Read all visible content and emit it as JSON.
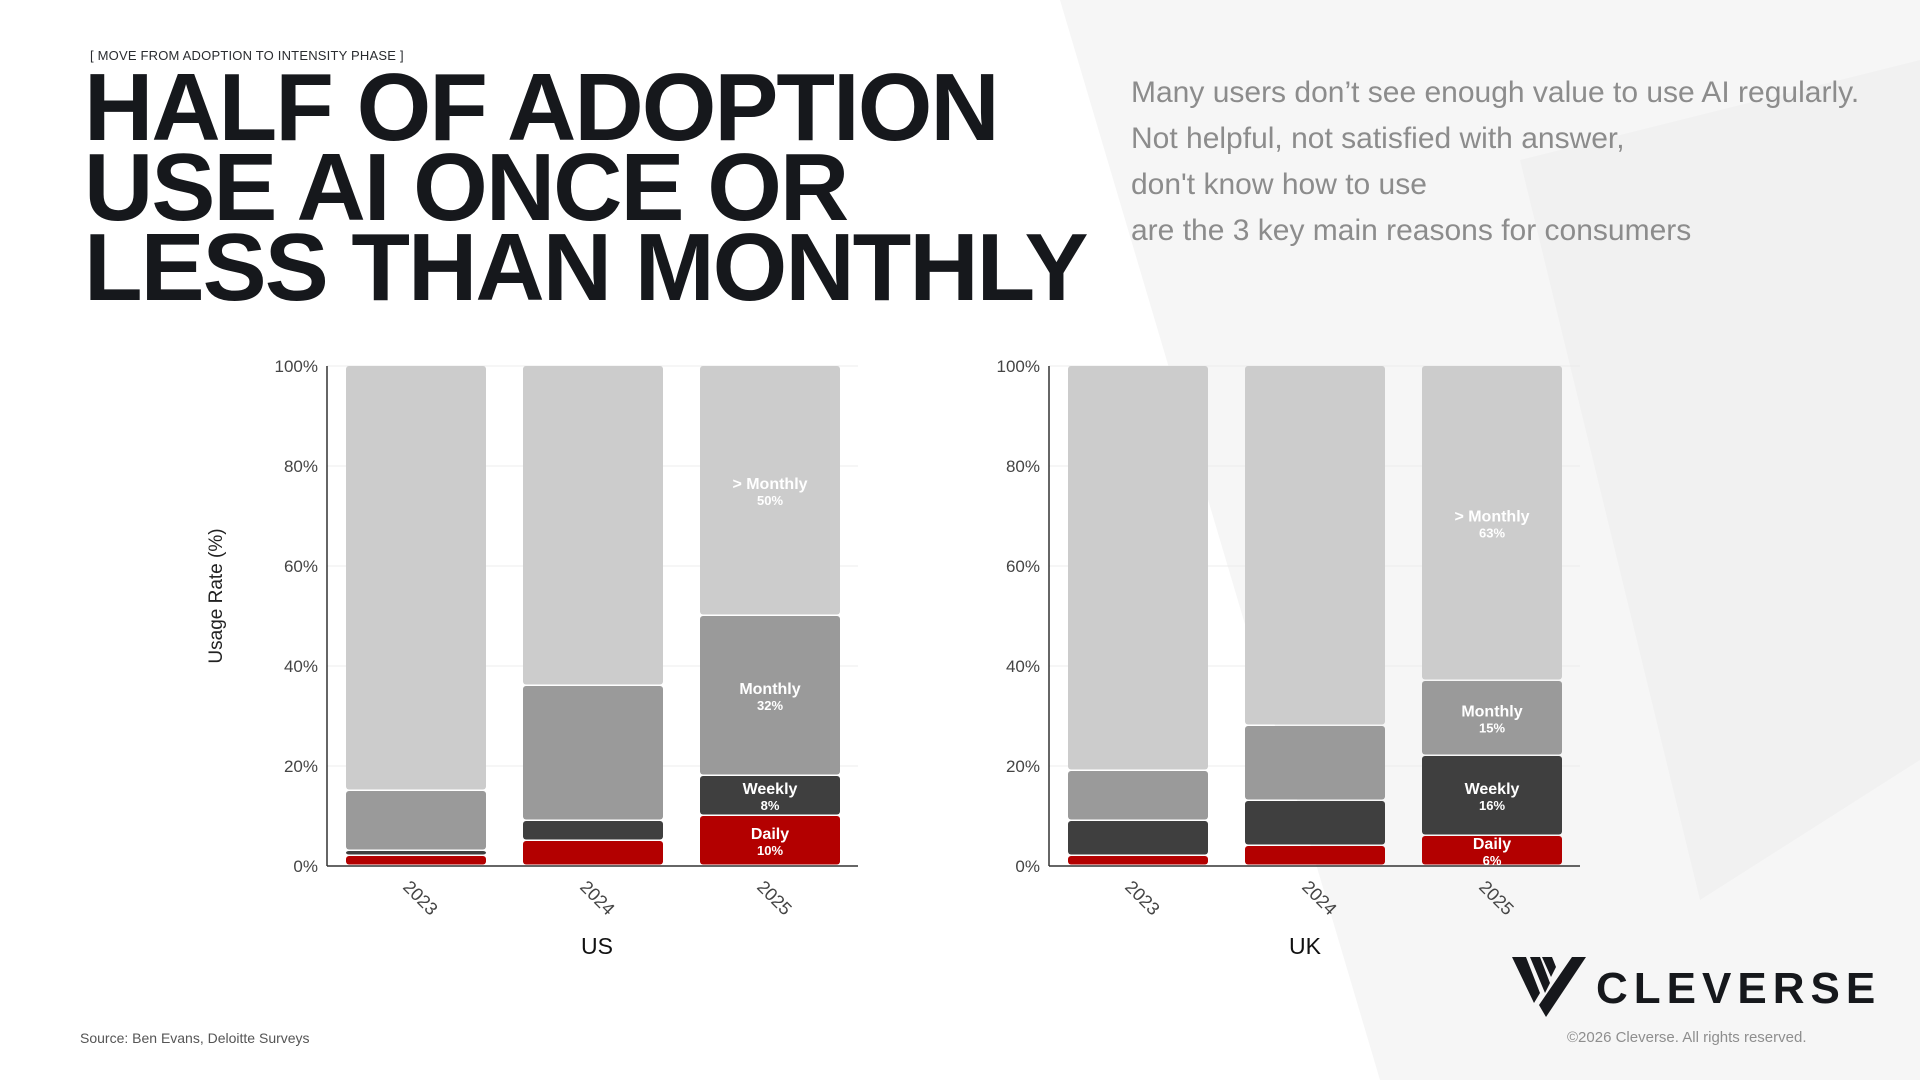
{
  "header": {
    "kicker": "[ MOVE FROM ADOPTION TO INTENSITY PHASE ]",
    "title_lines": [
      "HALF OF ADOPTION",
      "USE AI ONCE OR",
      "LESS THAN MONTHLY"
    ]
  },
  "subtext": [
    "Many users don’t see enough value to use AI regularly.",
    "Not helpful, not satisfied with answer,",
    "don't know how to use",
    "are the 3 key main reasons for consumers"
  ],
  "footer": {
    "source": "Source: Ben Evans, Deloitte Surveys",
    "brand_name": "CLEVERSE",
    "copyright": "©2026 Cleverse. All rights reserved.",
    "logo_icon": "cleverse-logo-icon"
  },
  "colors": {
    "daily": "#b30000",
    "weekly": "#3f3f3f",
    "monthly": "#9a9a9a",
    "more_than_monthly": "#cccccc",
    "grid": "#ececec",
    "axis": "#333333"
  },
  "chart_data": [
    {
      "type": "bar",
      "stacked": true,
      "xlabel": "US",
      "ylabel": "Usage Rate (%)",
      "ylim": [
        0,
        100
      ],
      "yticks": [
        "0%",
        "20%",
        "40%",
        "60%",
        "80%",
        "100%"
      ],
      "categories": [
        "2023",
        "2024",
        "2025"
      ],
      "grid": true,
      "series": [
        {
          "name": "Daily",
          "key": "daily",
          "values": [
            2,
            5,
            10
          ],
          "labels": [
            "",
            "",
            "10%"
          ]
        },
        {
          "name": "Weekly",
          "key": "weekly",
          "values": [
            1,
            4,
            8
          ],
          "labels": [
            "",
            "",
            "8%"
          ]
        },
        {
          "name": "Monthly",
          "key": "monthly",
          "values": [
            12,
            27,
            32
          ],
          "labels": [
            "",
            "",
            "32%"
          ]
        },
        {
          "name": "> Monthly",
          "key": "more_than_monthly",
          "values": [
            85,
            64,
            50
          ],
          "labels": [
            "",
            "",
            "50%"
          ]
        }
      ]
    },
    {
      "type": "bar",
      "stacked": true,
      "xlabel": "UK",
      "ylabel": "",
      "ylim": [
        0,
        100
      ],
      "yticks": [
        "0%",
        "20%",
        "40%",
        "60%",
        "80%",
        "100%"
      ],
      "categories": [
        "2023",
        "2024",
        "2025"
      ],
      "grid": true,
      "series": [
        {
          "name": "Daily",
          "key": "daily",
          "values": [
            2,
            4,
            6
          ],
          "labels": [
            "",
            "",
            "6%"
          ]
        },
        {
          "name": "Weekly",
          "key": "weekly",
          "values": [
            7,
            9,
            16
          ],
          "labels": [
            "",
            "",
            "16%"
          ]
        },
        {
          "name": "Monthly",
          "key": "monthly",
          "values": [
            10,
            15,
            15
          ],
          "labels": [
            "",
            "",
            "15%"
          ]
        },
        {
          "name": "> Monthly",
          "key": "more_than_monthly",
          "values": [
            81,
            72,
            63
          ],
          "labels": [
            "",
            "",
            "63%"
          ]
        }
      ]
    }
  ]
}
